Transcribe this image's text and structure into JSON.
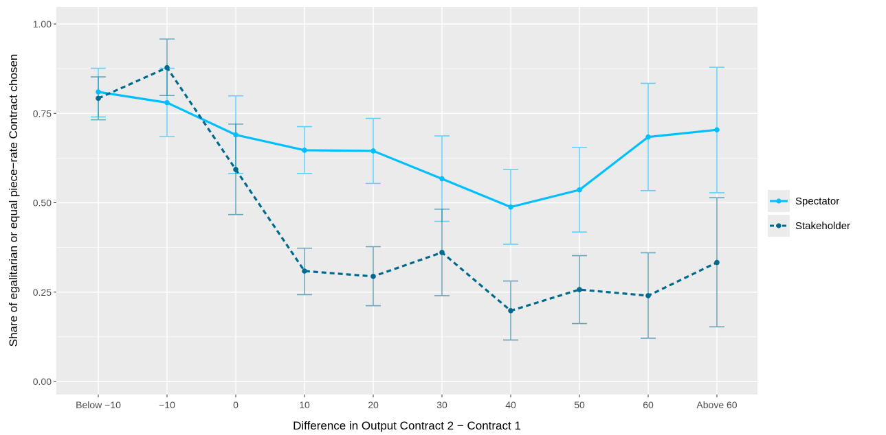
{
  "chart_data": {
    "type": "line",
    "xlabel": "Difference in Output Contract 2 − Contract 1",
    "ylabel": "Share of egalitarian or equal piece−rate Contract chosen",
    "categories": [
      "Below −10",
      "−10",
      "0",
      "10",
      "20",
      "30",
      "40",
      "50",
      "60",
      "Above 60"
    ],
    "ylim": [
      0,
      1.05
    ],
    "yticks": [
      0.0,
      0.25,
      0.5,
      0.75,
      1.0
    ],
    "ytick_labels": [
      "0.00",
      "0.25",
      "0.50",
      "0.75",
      "1.00"
    ],
    "grid": true,
    "legend_position": "right",
    "series": [
      {
        "name": "Spectator",
        "color": "#00bfff",
        "dash": "solid",
        "values": [
          0.81,
          0.78,
          0.69,
          0.647,
          0.645,
          0.567,
          0.488,
          0.536,
          0.684,
          0.704
        ],
        "lower": [
          0.74,
          0.685,
          0.582,
          0.582,
          0.554,
          0.448,
          0.384,
          0.418,
          0.534,
          0.528
        ],
        "upper": [
          0.876,
          0.876,
          0.799,
          0.713,
          0.736,
          0.687,
          0.593,
          0.655,
          0.834,
          0.879
        ]
      },
      {
        "name": "Stakeholder",
        "color": "#006a8e",
        "dash": "dashed",
        "values": [
          0.792,
          0.878,
          0.593,
          0.309,
          0.294,
          0.361,
          0.198,
          0.257,
          0.24,
          0.333
        ],
        "lower": [
          0.732,
          0.8,
          0.467,
          0.243,
          0.212,
          0.24,
          0.116,
          0.162,
          0.121,
          0.153
        ],
        "upper": [
          0.852,
          0.958,
          0.72,
          0.373,
          0.377,
          0.482,
          0.281,
          0.352,
          0.36,
          0.514
        ]
      }
    ]
  }
}
